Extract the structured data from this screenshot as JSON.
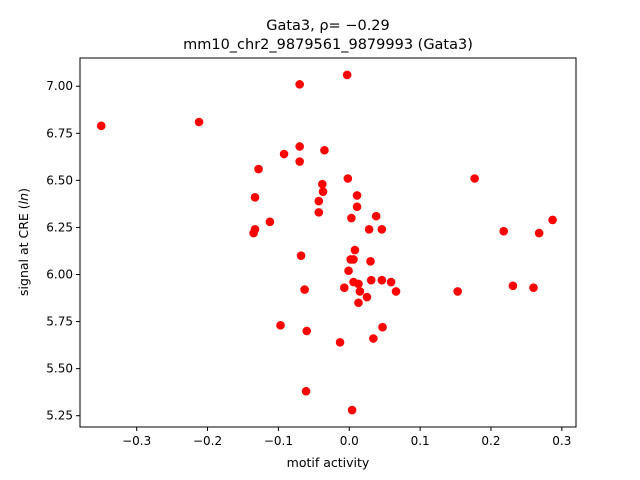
{
  "chart_data": {
    "type": "scatter",
    "title_line1": "Gata3, ρ= −0.29",
    "title_line2": "mm10_chr2_9879561_9879993 (Gata3)",
    "xlabel": "motif activity",
    "ylabel": "signal at CRE (ln)",
    "xlim": [
      -0.38,
      0.32
    ],
    "ylim": [
      5.19,
      7.15
    ],
    "xticks": [
      -0.3,
      -0.2,
      -0.1,
      0.0,
      0.1,
      0.2,
      0.3
    ],
    "xtick_labels": [
      "−0.3",
      "−0.2",
      "−0.1",
      "0.0",
      "0.1",
      "0.2",
      "0.3"
    ],
    "yticks": [
      5.25,
      5.5,
      5.75,
      6.0,
      6.25,
      6.5,
      6.75,
      7.0
    ],
    "ytick_labels": [
      "5.25",
      "5.50",
      "5.75",
      "6.00",
      "6.25",
      "6.50",
      "6.75",
      "7.00"
    ],
    "grid": false,
    "marker_color": "#ff0000",
    "points": [
      {
        "x": -0.35,
        "y": 6.79
      },
      {
        "x": -0.212,
        "y": 6.81
      },
      {
        "x": -0.07,
        "y": 7.01
      },
      {
        "x": -0.003,
        "y": 7.06
      },
      {
        "x": -0.07,
        "y": 6.68
      },
      {
        "x": -0.035,
        "y": 6.66
      },
      {
        "x": -0.092,
        "y": 6.64
      },
      {
        "x": -0.07,
        "y": 6.6
      },
      {
        "x": -0.128,
        "y": 6.56
      },
      {
        "x": -0.002,
        "y": 6.51
      },
      {
        "x": -0.038,
        "y": 6.48
      },
      {
        "x": -0.037,
        "y": 6.44
      },
      {
        "x": 0.011,
        "y": 6.42
      },
      {
        "x": -0.133,
        "y": 6.41
      },
      {
        "x": -0.043,
        "y": 6.39
      },
      {
        "x": 0.011,
        "y": 6.36
      },
      {
        "x": -0.043,
        "y": 6.33
      },
      {
        "x": 0.038,
        "y": 6.31
      },
      {
        "x": 0.003,
        "y": 6.3
      },
      {
        "x": -0.112,
        "y": 6.28
      },
      {
        "x": 0.028,
        "y": 6.24
      },
      {
        "x": 0.046,
        "y": 6.24
      },
      {
        "x": -0.133,
        "y": 6.24
      },
      {
        "x": -0.135,
        "y": 6.22
      },
      {
        "x": 0.008,
        "y": 6.13
      },
      {
        "x": -0.068,
        "y": 6.1
      },
      {
        "x": 0.002,
        "y": 6.08
      },
      {
        "x": 0.006,
        "y": 6.08
      },
      {
        "x": 0.03,
        "y": 6.07
      },
      {
        "x": -0.001,
        "y": 6.02
      },
      {
        "x": 0.031,
        "y": 5.97
      },
      {
        "x": 0.046,
        "y": 5.97
      },
      {
        "x": 0.059,
        "y": 5.96
      },
      {
        "x": 0.006,
        "y": 5.96
      },
      {
        "x": 0.013,
        "y": 5.95
      },
      {
        "x": -0.007,
        "y": 5.93
      },
      {
        "x": 0.015,
        "y": 5.91
      },
      {
        "x": 0.066,
        "y": 5.91
      },
      {
        "x": 0.025,
        "y": 5.88
      },
      {
        "x": -0.063,
        "y": 5.92
      },
      {
        "x": 0.013,
        "y": 5.85
      },
      {
        "x": -0.097,
        "y": 5.73
      },
      {
        "x": 0.047,
        "y": 5.72
      },
      {
        "x": -0.06,
        "y": 5.7
      },
      {
        "x": 0.034,
        "y": 5.66
      },
      {
        "x": -0.013,
        "y": 5.64
      },
      {
        "x": -0.061,
        "y": 5.38
      },
      {
        "x": 0.004,
        "y": 5.28
      },
      {
        "x": 0.177,
        "y": 6.51
      },
      {
        "x": 0.218,
        "y": 6.23
      },
      {
        "x": 0.287,
        "y": 6.29
      },
      {
        "x": 0.268,
        "y": 6.22
      },
      {
        "x": 0.153,
        "y": 5.91
      },
      {
        "x": 0.231,
        "y": 5.94
      },
      {
        "x": 0.26,
        "y": 5.93
      }
    ]
  }
}
